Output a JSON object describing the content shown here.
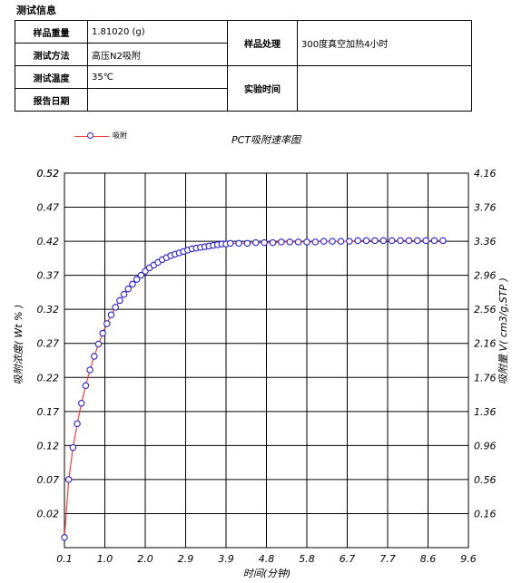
{
  "section_title": "测试信息",
  "info_table": {
    "sample_weight_label": "样品重量",
    "sample_weight_value": "1.81020 (g)",
    "test_method_label": "测试方法",
    "test_method_value": "高压N2吸附",
    "test_temp_label": "测试温度",
    "test_temp_value": "35℃",
    "report_date_label": "报告日期",
    "report_date_value": "",
    "sample_treatment_label": "样品处理",
    "sample_treatment_value": "300度真空加热4小时",
    "experiment_time_label": "实验时间",
    "experiment_time_value": ""
  },
  "colors": {
    "line": "#ff3b3b",
    "marker": "#2b21d6",
    "grid": "#000000"
  },
  "chart_data": {
    "type": "line",
    "title": "PCT吸附速率图",
    "xlabel": "时间(分钟)",
    "ylabel": "吸附浓度( Wt % )",
    "y2label": "吸附量 V( cm3/g,STP )",
    "xlim": [
      0.1,
      9.6
    ],
    "ylim": [
      -0.03,
      0.52
    ],
    "y2lim": [
      -0.24,
      4.16
    ],
    "grid": true,
    "legend_position": "top-left",
    "x_ticks": [
      "0.1",
      "1.0",
      "2.0",
      "2.9",
      "3.9",
      "4.8",
      "5.8",
      "6.7",
      "7.7",
      "8.6",
      "9.6"
    ],
    "y_ticks": [
      "0.02",
      "0.07",
      "0.12",
      "0.17",
      "0.22",
      "0.27",
      "0.32",
      "0.37",
      "0.42",
      "0.47",
      "0.52"
    ],
    "y2_ticks": [
      "0.16",
      "0.56",
      "0.96",
      "1.36",
      "1.76",
      "2.16",
      "2.56",
      "2.96",
      "3.36",
      "3.76",
      "4.16"
    ],
    "series": [
      {
        "name": "吸附",
        "x": [
          0.1,
          0.2,
          0.3,
          0.4,
          0.5,
          0.6,
          0.7,
          0.8,
          0.9,
          1.0,
          1.1,
          1.2,
          1.3,
          1.4,
          1.5,
          1.6,
          1.7,
          1.8,
          1.9,
          2.0,
          2.1,
          2.2,
          2.3,
          2.4,
          2.5,
          2.6,
          2.7,
          2.8,
          2.9,
          3.0,
          3.1,
          3.2,
          3.3,
          3.4,
          3.5,
          3.6,
          3.7,
          3.8,
          3.9,
          4.0,
          4.2,
          4.4,
          4.6,
          4.8,
          5.0,
          5.2,
          5.4,
          5.6,
          5.8,
          6.0,
          6.2,
          6.4,
          6.6,
          6.8,
          7.0,
          7.2,
          7.4,
          7.6,
          7.8,
          8.0,
          8.2,
          8.4,
          8.6,
          8.8,
          9.0
        ],
        "y": [
          -0.015,
          0.07,
          0.117,
          0.152,
          0.182,
          0.208,
          0.231,
          0.251,
          0.269,
          0.285,
          0.299,
          0.312,
          0.323,
          0.333,
          0.342,
          0.35,
          0.357,
          0.364,
          0.37,
          0.376,
          0.381,
          0.385,
          0.389,
          0.393,
          0.396,
          0.399,
          0.401,
          0.403,
          0.405,
          0.407,
          0.409,
          0.41,
          0.411,
          0.412,
          0.413,
          0.414,
          0.415,
          0.416,
          0.416,
          0.417,
          0.417,
          0.417,
          0.418,
          0.418,
          0.418,
          0.419,
          0.419,
          0.419,
          0.419,
          0.419,
          0.42,
          0.42,
          0.42,
          0.42,
          0.421,
          0.421,
          0.421,
          0.421,
          0.421,
          0.421,
          0.421,
          0.421,
          0.421,
          0.421,
          0.421
        ]
      }
    ]
  }
}
